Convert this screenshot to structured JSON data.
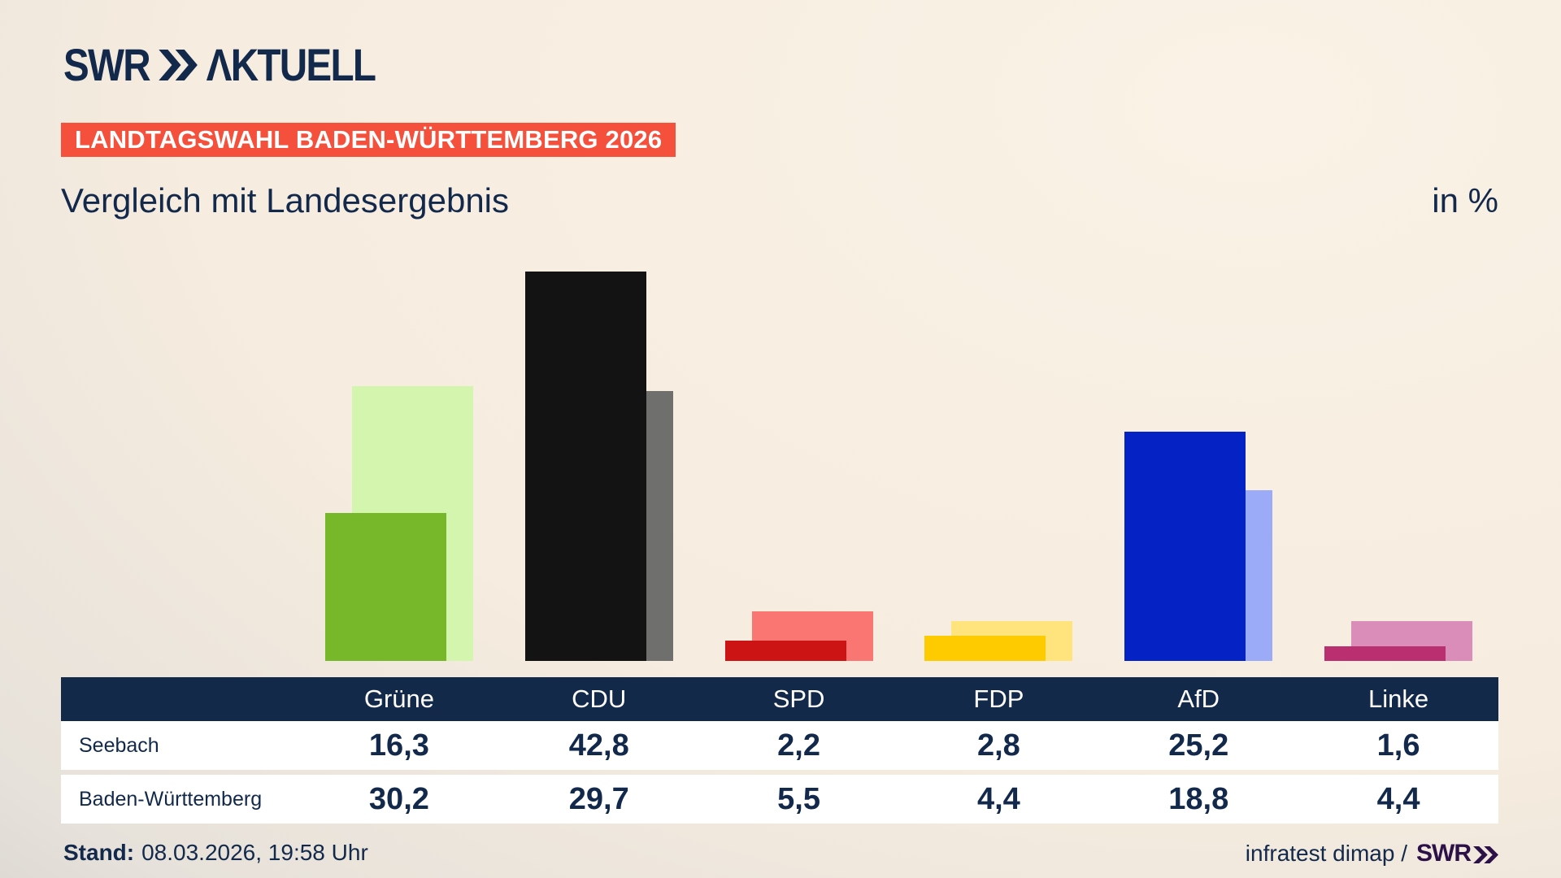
{
  "header": {
    "brand": "SWR",
    "aktuell": "ΛKTUELL"
  },
  "badge": {
    "label": "LANDTAGSWAHL BADEN-WÜRTTEMBERG 2026",
    "bg_color": "#f4503c"
  },
  "title": {
    "text": "Vergleich mit Landesergebnis",
    "unit": "in %"
  },
  "chart_data": {
    "type": "bar",
    "title": "Vergleich mit Landesergebnis",
    "unit": "%",
    "categories": [
      "Grüne",
      "CDU",
      "SPD",
      "FDP",
      "AfD",
      "Linke"
    ],
    "series": [
      {
        "name": "Seebach",
        "values": [
          16.3,
          42.8,
          2.2,
          2.8,
          25.2,
          1.6
        ],
        "colors": [
          "#76b82a",
          "#131313",
          "#cd1415",
          "#fecb00",
          "#0522c5",
          "#ba2f70"
        ]
      },
      {
        "name": "Baden-Württemberg",
        "values": [
          30.2,
          29.7,
          5.5,
          4.4,
          18.8,
          4.4
        ],
        "colors": [
          "#d4f5ae",
          "#6f6f6e",
          "#fa7673",
          "#ffe37c",
          "#9babf7",
          "#d98db8"
        ]
      }
    ],
    "ylim": [
      0,
      48
    ],
    "grid": false,
    "legend_position": "table-below",
    "value_labels_in_table": true
  },
  "table": {
    "header_bg": "#13294a",
    "row_bg": "#ffffff",
    "decimal_separator": ","
  },
  "footer": {
    "stand_label": "Stand:",
    "stand_value": "08.03.2026, 19:58 Uhr",
    "source_text": "infratest dimap /",
    "source_brand": "SWR",
    "source_brand_color": "#2b1148"
  },
  "colors": {
    "text_navy": "#12294b",
    "background_cream": "#f8efe3",
    "background_gray": "#c8c5c2"
  }
}
